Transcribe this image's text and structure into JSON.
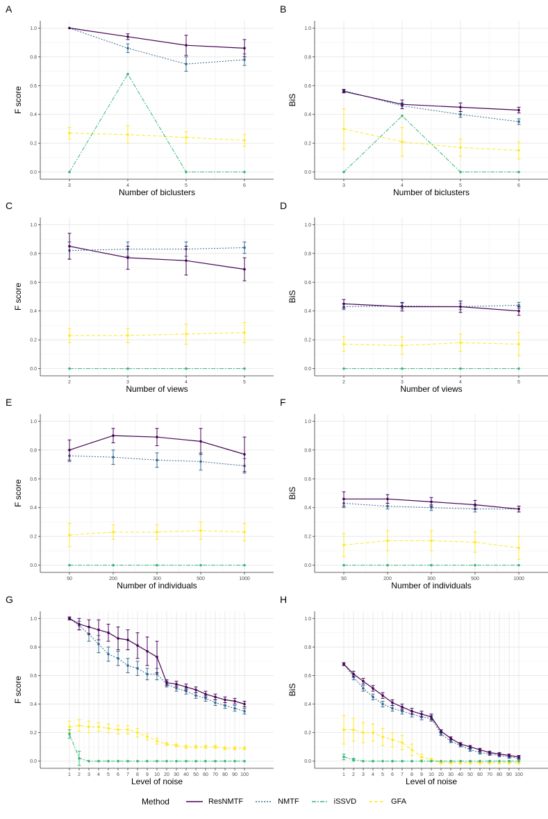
{
  "colors": {
    "ResNMTF": "#440154",
    "NMTF": "#31688E",
    "iSSVD": "#35B779",
    "GFA": "#FDE725"
  },
  "legend": {
    "title": "Method",
    "entries": [
      "ResNMTF",
      "NMTF",
      "iSSVD",
      "GFA"
    ]
  },
  "chart_data": [
    {
      "panel": "A",
      "type": "line",
      "xlabel": "Number of biclusters",
      "ylabel": "F score",
      "x": [
        "3",
        "4",
        "5",
        "6"
      ],
      "ylim": [
        0,
        1
      ],
      "yticks": [
        0.0,
        0.2,
        0.4,
        0.6,
        0.8,
        1.0
      ],
      "series": [
        {
          "name": "ResNMTF",
          "values": [
            1.0,
            0.94,
            0.88,
            0.86
          ],
          "err": [
            0.0,
            0.02,
            0.07,
            0.06
          ]
        },
        {
          "name": "NMTF",
          "values": [
            1.0,
            0.86,
            0.75,
            0.78
          ],
          "err": [
            0.0,
            0.03,
            0.05,
            0.04
          ]
        },
        {
          "name": "iSSVD",
          "values": [
            0.0,
            0.68,
            0.0,
            0.0
          ],
          "err": [
            0,
            0,
            0,
            0
          ]
        },
        {
          "name": "GFA",
          "values": [
            0.27,
            0.26,
            0.24,
            0.22
          ],
          "err": [
            0.04,
            0.06,
            0.04,
            0.04
          ]
        }
      ]
    },
    {
      "panel": "B",
      "type": "line",
      "xlabel": "Number of biclusters",
      "ylabel": "BiS",
      "x": [
        "3",
        "4",
        "5",
        "6"
      ],
      "ylim": [
        0,
        1
      ],
      "yticks": [
        0.0,
        0.2,
        0.4,
        0.6,
        0.8,
        1.0
      ],
      "series": [
        {
          "name": "ResNMTF",
          "values": [
            0.56,
            0.47,
            0.45,
            0.43
          ],
          "err": [
            0.01,
            0.03,
            0.03,
            0.02
          ]
        },
        {
          "name": "NMTF",
          "values": [
            0.565,
            0.46,
            0.4,
            0.35
          ],
          "err": [
            0.01,
            0.02,
            0.02,
            0.02
          ]
        },
        {
          "name": "iSSVD",
          "values": [
            0.0,
            0.39,
            0.0,
            0.0
          ],
          "err": [
            0,
            0,
            0,
            0
          ]
        },
        {
          "name": "GFA",
          "values": [
            0.3,
            0.21,
            0.17,
            0.15
          ],
          "err": [
            0.14,
            0.1,
            0.06,
            0.06
          ]
        }
      ]
    },
    {
      "panel": "C",
      "type": "line",
      "xlabel": "Number of views",
      "ylabel": "F score",
      "x": [
        "2",
        "3",
        "4",
        "5"
      ],
      "ylim": [
        0,
        1
      ],
      "yticks": [
        0.0,
        0.2,
        0.4,
        0.6,
        0.8,
        1.0
      ],
      "series": [
        {
          "name": "ResNMTF",
          "values": [
            0.85,
            0.77,
            0.75,
            0.69
          ],
          "err": [
            0.09,
            0.08,
            0.1,
            0.08
          ]
        },
        {
          "name": "NMTF",
          "values": [
            0.82,
            0.83,
            0.83,
            0.84
          ],
          "err": [
            0.06,
            0.05,
            0.05,
            0.04
          ]
        },
        {
          "name": "iSSVD",
          "values": [
            0.0,
            0.0,
            0.0,
            0.0
          ],
          "err": [
            0,
            0,
            0,
            0
          ]
        },
        {
          "name": "GFA",
          "values": [
            0.23,
            0.23,
            0.24,
            0.25
          ],
          "err": [
            0.05,
            0.05,
            0.07,
            0.07
          ]
        }
      ]
    },
    {
      "panel": "D",
      "type": "line",
      "xlabel": "Number of views",
      "ylabel": "BiS",
      "x": [
        "2",
        "3",
        "4",
        "5"
      ],
      "ylim": [
        0,
        1
      ],
      "yticks": [
        0.0,
        0.2,
        0.4,
        0.6,
        0.8,
        1.0
      ],
      "series": [
        {
          "name": "ResNMTF",
          "values": [
            0.45,
            0.43,
            0.43,
            0.4
          ],
          "err": [
            0.03,
            0.03,
            0.04,
            0.03
          ]
        },
        {
          "name": "NMTF",
          "values": [
            0.43,
            0.435,
            0.43,
            0.44
          ],
          "err": [
            0.02,
            0.02,
            0.02,
            0.02
          ]
        },
        {
          "name": "iSSVD",
          "values": [
            0.0,
            0.0,
            0.0,
            0.0
          ],
          "err": [
            0,
            0,
            0,
            0
          ]
        },
        {
          "name": "GFA",
          "values": [
            0.17,
            0.16,
            0.18,
            0.17
          ],
          "err": [
            0.05,
            0.06,
            0.06,
            0.08
          ]
        }
      ]
    },
    {
      "panel": "E",
      "type": "line",
      "xlabel": "Number of individuals",
      "ylabel": "F score",
      "x": [
        "50",
        "200",
        "300",
        "500",
        "1000"
      ],
      "ylim": [
        0,
        1
      ],
      "yticks": [
        0.0,
        0.2,
        0.4,
        0.6,
        0.8,
        1.0
      ],
      "series": [
        {
          "name": "ResNMTF",
          "values": [
            0.8,
            0.9,
            0.89,
            0.86,
            0.77
          ],
          "err": [
            0.07,
            0.05,
            0.06,
            0.09,
            0.12
          ]
        },
        {
          "name": "NMTF",
          "values": [
            0.76,
            0.75,
            0.73,
            0.72,
            0.69
          ],
          "err": [
            0.04,
            0.05,
            0.05,
            0.06,
            0.05
          ]
        },
        {
          "name": "iSSVD",
          "values": [
            0.0,
            0.0,
            0.0,
            0.0,
            0.0
          ],
          "err": [
            0,
            0,
            0,
            0,
            0
          ]
        },
        {
          "name": "GFA",
          "values": [
            0.21,
            0.23,
            0.23,
            0.24,
            0.23
          ],
          "err": [
            0.08,
            0.05,
            0.05,
            0.06,
            0.06
          ]
        }
      ]
    },
    {
      "panel": "F",
      "type": "line",
      "xlabel": "Number of individuals",
      "ylabel": "BiS",
      "x": [
        "50",
        "200",
        "300",
        "500",
        "1000"
      ],
      "ylim": [
        0,
        1
      ],
      "yticks": [
        0.0,
        0.2,
        0.4,
        0.6,
        0.8,
        1.0
      ],
      "series": [
        {
          "name": "ResNMTF",
          "values": [
            0.46,
            0.46,
            0.44,
            0.42,
            0.39
          ],
          "err": [
            0.05,
            0.03,
            0.03,
            0.03,
            0.02
          ]
        },
        {
          "name": "NMTF",
          "values": [
            0.43,
            0.41,
            0.4,
            0.39,
            0.39
          ],
          "err": [
            0.03,
            0.02,
            0.02,
            0.02,
            0.02
          ]
        },
        {
          "name": "iSSVD",
          "values": [
            0.0,
            0.0,
            0.0,
            0.0,
            0.0
          ],
          "err": [
            0,
            0,
            0,
            0,
            0
          ]
        },
        {
          "name": "GFA",
          "values": [
            0.14,
            0.17,
            0.17,
            0.16,
            0.12
          ],
          "err": [
            0.08,
            0.07,
            0.07,
            0.07,
            0.08
          ]
        }
      ]
    },
    {
      "panel": "G",
      "type": "line",
      "xlabel": "Level of noise",
      "ylabel": "F score",
      "x": [
        "1",
        "2",
        "3",
        "4",
        "5",
        "6",
        "7",
        "8",
        "9",
        "10",
        "20",
        "30",
        "40",
        "50",
        "60",
        "70",
        "80",
        "90",
        "100"
      ],
      "ylim": [
        0,
        1
      ],
      "yticks": [
        0.0,
        0.2,
        0.4,
        0.6,
        0.8,
        1.0
      ],
      "series": [
        {
          "name": "ResNMTF",
          "values": [
            1.0,
            0.96,
            0.94,
            0.92,
            0.9,
            0.86,
            0.85,
            0.81,
            0.77,
            0.73,
            0.55,
            0.54,
            0.52,
            0.5,
            0.47,
            0.45,
            0.43,
            0.42,
            0.4
          ],
          "err": [
            0.01,
            0.04,
            0.05,
            0.07,
            0.06,
            0.08,
            0.07,
            0.09,
            0.1,
            0.11,
            0.02,
            0.02,
            0.02,
            0.02,
            0.02,
            0.02,
            0.02,
            0.02,
            0.02
          ]
        },
        {
          "name": "NMTF",
          "values": [
            1.0,
            0.95,
            0.89,
            0.82,
            0.75,
            0.72,
            0.67,
            0.65,
            0.61,
            0.61,
            0.54,
            0.51,
            0.49,
            0.46,
            0.44,
            0.41,
            0.39,
            0.37,
            0.35
          ],
          "err": [
            0.01,
            0.03,
            0.05,
            0.06,
            0.05,
            0.05,
            0.05,
            0.05,
            0.04,
            0.04,
            0.02,
            0.02,
            0.02,
            0.02,
            0.02,
            0.02,
            0.02,
            0.02,
            0.02
          ]
        },
        {
          "name": "iSSVD",
          "values": [
            0.19,
            0.02,
            0.0,
            0.0,
            0.0,
            0.0,
            0.0,
            0.0,
            0.0,
            0.0,
            0.0,
            0.0,
            0.0,
            0.0,
            0.0,
            0.0,
            0.0,
            0.0,
            0.0
          ],
          "err": [
            0.03,
            0.05,
            0,
            0,
            0,
            0,
            0,
            0,
            0,
            0,
            0,
            0,
            0,
            0,
            0,
            0,
            0,
            0,
            0
          ]
        },
        {
          "name": "GFA",
          "values": [
            0.24,
            0.25,
            0.24,
            0.24,
            0.23,
            0.22,
            0.22,
            0.2,
            0.17,
            0.14,
            0.12,
            0.11,
            0.1,
            0.1,
            0.1,
            0.1,
            0.09,
            0.09,
            0.09
          ],
          "err": [
            0.04,
            0.04,
            0.04,
            0.03,
            0.03,
            0.03,
            0.03,
            0.03,
            0.02,
            0.02,
            0.01,
            0.01,
            0.01,
            0.01,
            0.01,
            0.01,
            0.01,
            0.01,
            0.01
          ]
        }
      ]
    },
    {
      "panel": "H",
      "type": "line",
      "xlabel": "Level of noise",
      "ylabel": "BiS",
      "x": [
        "1",
        "2",
        "3",
        "4",
        "5",
        "6",
        "7",
        "8",
        "9",
        "10",
        "20",
        "30",
        "40",
        "50",
        "60",
        "70",
        "80",
        "90",
        "100"
      ],
      "ylim": [
        0,
        1
      ],
      "yticks": [
        0.0,
        0.2,
        0.4,
        0.6,
        0.8,
        1.0
      ],
      "series": [
        {
          "name": "ResNMTF",
          "values": [
            0.68,
            0.61,
            0.56,
            0.51,
            0.46,
            0.41,
            0.38,
            0.35,
            0.33,
            0.31,
            0.21,
            0.16,
            0.12,
            0.1,
            0.08,
            0.06,
            0.05,
            0.04,
            0.03
          ],
          "err": [
            0.01,
            0.02,
            0.02,
            0.02,
            0.02,
            0.02,
            0.02,
            0.02,
            0.02,
            0.02,
            0.01,
            0.01,
            0.01,
            0.01,
            0.01,
            0.01,
            0.01,
            0.01,
            0.01
          ]
        },
        {
          "name": "NMTF",
          "values": [
            0.68,
            0.59,
            0.51,
            0.45,
            0.4,
            0.37,
            0.35,
            0.33,
            0.31,
            0.3,
            0.19,
            0.14,
            0.11,
            0.08,
            0.06,
            0.05,
            0.04,
            0.03,
            0.02
          ],
          "err": [
            0.01,
            0.02,
            0.02,
            0.02,
            0.02,
            0.02,
            0.02,
            0.02,
            0.02,
            0.02,
            0.01,
            0.01,
            0.01,
            0.01,
            0.01,
            0.01,
            0.01,
            0.01,
            0.01
          ]
        },
        {
          "name": "iSSVD",
          "values": [
            0.03,
            0.01,
            0.0,
            0.0,
            0.0,
            0.0,
            0.0,
            0.0,
            0.0,
            0.0,
            0.0,
            0.0,
            0.0,
            0.0,
            0.0,
            0.0,
            0.0,
            0.0,
            0.0
          ],
          "err": [
            0.02,
            0.01,
            0,
            0,
            0,
            0,
            0,
            0,
            0,
            0,
            0,
            0,
            0,
            0,
            0,
            0,
            0,
            0,
            0
          ]
        },
        {
          "name": "GFA",
          "values": [
            0.22,
            0.22,
            0.2,
            0.2,
            0.17,
            0.15,
            0.13,
            0.08,
            0.03,
            0.01,
            -0.01,
            -0.01,
            -0.01,
            -0.01,
            -0.01,
            -0.01,
            -0.01,
            -0.01,
            -0.01
          ],
          "err": [
            0.1,
            0.08,
            0.07,
            0.06,
            0.06,
            0.05,
            0.05,
            0.04,
            0.02,
            0.01,
            0.01,
            0.01,
            0.01,
            0.01,
            0.01,
            0.01,
            0.01,
            0.01,
            0.01
          ]
        }
      ]
    }
  ]
}
